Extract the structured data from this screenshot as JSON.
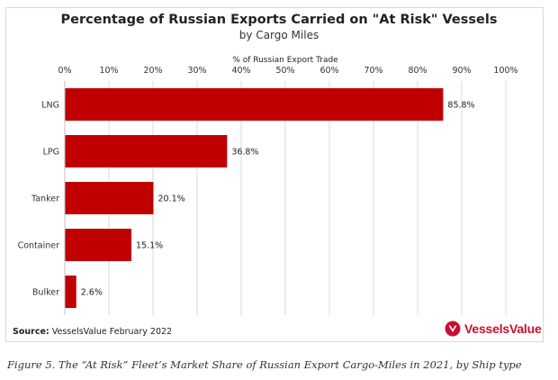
{
  "chart_data": {
    "type": "bar",
    "orientation": "horizontal",
    "title": "Percentage of Russian Exports Carried on \"At Risk\" Vessels",
    "subtitle": "by Cargo Miles",
    "xlabel": "% of Russian Export Trade",
    "ylabel": "",
    "xlim": [
      0,
      100
    ],
    "ticks": [
      "0%",
      "10%",
      "20%",
      "30%",
      "40%",
      "50%",
      "60%",
      "70%",
      "80%",
      "90%",
      "100%"
    ],
    "tick_values": [
      0,
      10,
      20,
      30,
      40,
      50,
      60,
      70,
      80,
      90,
      100
    ],
    "categories": [
      "LNG",
      "LPG",
      "Tanker",
      "Container",
      "Bulker"
    ],
    "values": [
      85.8,
      36.8,
      20.1,
      15.1,
      2.6
    ],
    "value_labels": [
      "85.8%",
      "36.8%",
      "20.1%",
      "15.1%",
      "2.6%"
    ],
    "bar_color": "#c00000",
    "grid": true,
    "legend": "none",
    "axis_position": "top"
  },
  "source": {
    "label": "Source:",
    "text": "VesselsValue February 2022"
  },
  "brand": {
    "name": "VesselsValue",
    "color": "#c8102e"
  },
  "caption": "Figure 5. The “At Risk” Fleet’s Market Share of Russian Export Cargo-Miles in 2021, by Ship type"
}
